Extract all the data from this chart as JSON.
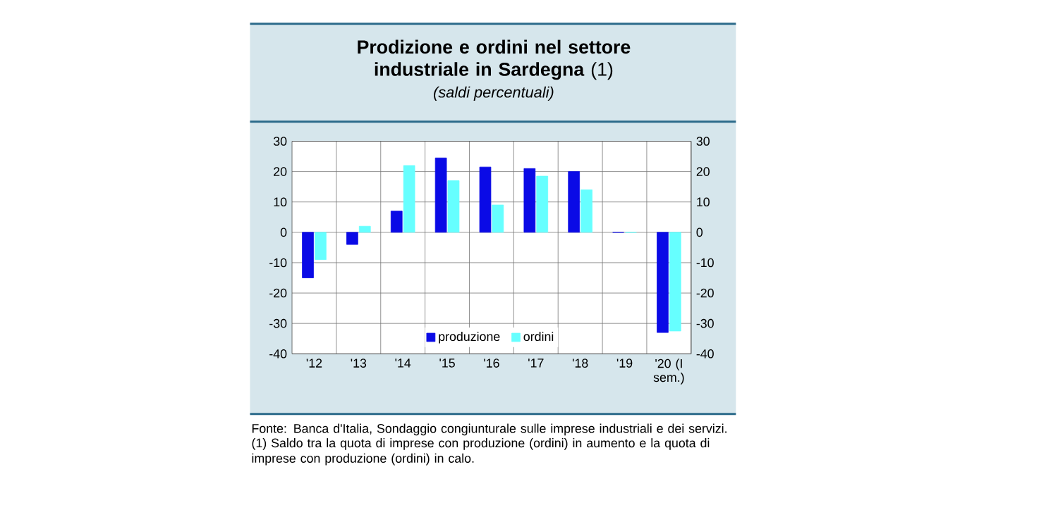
{
  "chart_data": {
    "type": "bar",
    "title": "**Prodizione e ordini nel settore industriale in Sardegna** (1)",
    "subtitle": "(saldi percentuali)",
    "categories": [
      "'12",
      "'13",
      "'14",
      "'15",
      "'16",
      "'17",
      "'18",
      "'19",
      "'20 (I sem.)"
    ],
    "series": [
      {
        "name": "produzione",
        "color": "#0a0ae6",
        "values": [
          -15,
          -4,
          7,
          24.5,
          21.5,
          21,
          20,
          0,
          -33
        ]
      },
      {
        "name": "ordini",
        "color": "#66ffff",
        "values": [
          -9,
          2,
          22,
          17,
          9,
          18.5,
          14,
          0,
          -32.5
        ]
      }
    ],
    "ylim": [
      -40,
      30
    ],
    "yticks": [
      -40,
      -30,
      -20,
      -10,
      0,
      10,
      20,
      30
    ],
    "y2lim": [
      -40,
      30
    ],
    "y2ticks": [
      -40,
      -30,
      -20,
      -10,
      0,
      10,
      20,
      30
    ],
    "grid": true,
    "legend": "bottom",
    "annotations": [
      "Fonte: Banca d'Italia, Sondaggio congiunturale sulle imprese industriali e dei servizi.",
      "(1) Saldo tra la quota di imprese con produzione (ordini) in aumento e la quota di imprese con produzione (ordini) in calo."
    ]
  }
}
